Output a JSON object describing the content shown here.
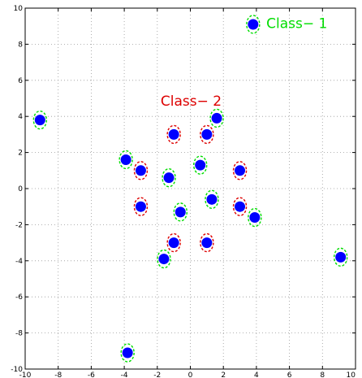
{
  "chart_data": {
    "type": "scatter",
    "xlim": [
      -10,
      10
    ],
    "ylim": [
      -10,
      10
    ],
    "xticks": [
      -10,
      -8,
      -6,
      -4,
      -2,
      0,
      2,
      4,
      6,
      8,
      10
    ],
    "yticks": [
      -10,
      -8,
      -6,
      -4,
      -2,
      0,
      2,
      4,
      6,
      8,
      10
    ],
    "grid": true,
    "grid_style": "dotted",
    "annotations": [
      {
        "text": "Class− 1",
        "x": 4.6,
        "y": 8.9,
        "color": "#00dd00"
      },
      {
        "text": "Class− 2",
        "x": -1.8,
        "y": 4.6,
        "color": "#dd0000"
      }
    ],
    "marker_color": "#0000ff",
    "class_colors": {
      "class1": "#00dd00",
      "class2": "#dd0000"
    },
    "points": [
      {
        "x": 3.8,
        "y": 9.1,
        "cls": "class1"
      },
      {
        "x": -9.1,
        "y": 3.8,
        "cls": "class1"
      },
      {
        "x": 1.6,
        "y": 3.9,
        "cls": "class1"
      },
      {
        "x": -1.0,
        "y": 3.0,
        "cls": "class2"
      },
      {
        "x": 1.0,
        "y": 3.0,
        "cls": "class2"
      },
      {
        "x": -3.9,
        "y": 1.6,
        "cls": "class1"
      },
      {
        "x": -3.0,
        "y": 1.0,
        "cls": "class2"
      },
      {
        "x": 0.6,
        "y": 1.3,
        "cls": "class1"
      },
      {
        "x": 3.0,
        "y": 1.0,
        "cls": "class2"
      },
      {
        "x": -1.3,
        "y": 0.6,
        "cls": "class1"
      },
      {
        "x": 1.3,
        "y": -0.6,
        "cls": "class1"
      },
      {
        "x": -3.0,
        "y": -1.0,
        "cls": "class2"
      },
      {
        "x": 3.0,
        "y": -1.0,
        "cls": "class2"
      },
      {
        "x": -0.6,
        "y": -1.3,
        "cls": "class1"
      },
      {
        "x": 3.9,
        "y": -1.6,
        "cls": "class1"
      },
      {
        "x": -1.0,
        "y": -3.0,
        "cls": "class2"
      },
      {
        "x": 1.0,
        "y": -3.0,
        "cls": "class2"
      },
      {
        "x": -1.6,
        "y": -3.9,
        "cls": "class1"
      },
      {
        "x": 9.1,
        "y": -3.8,
        "cls": "class1"
      },
      {
        "x": -3.8,
        "y": -9.1,
        "cls": "class1"
      }
    ]
  }
}
